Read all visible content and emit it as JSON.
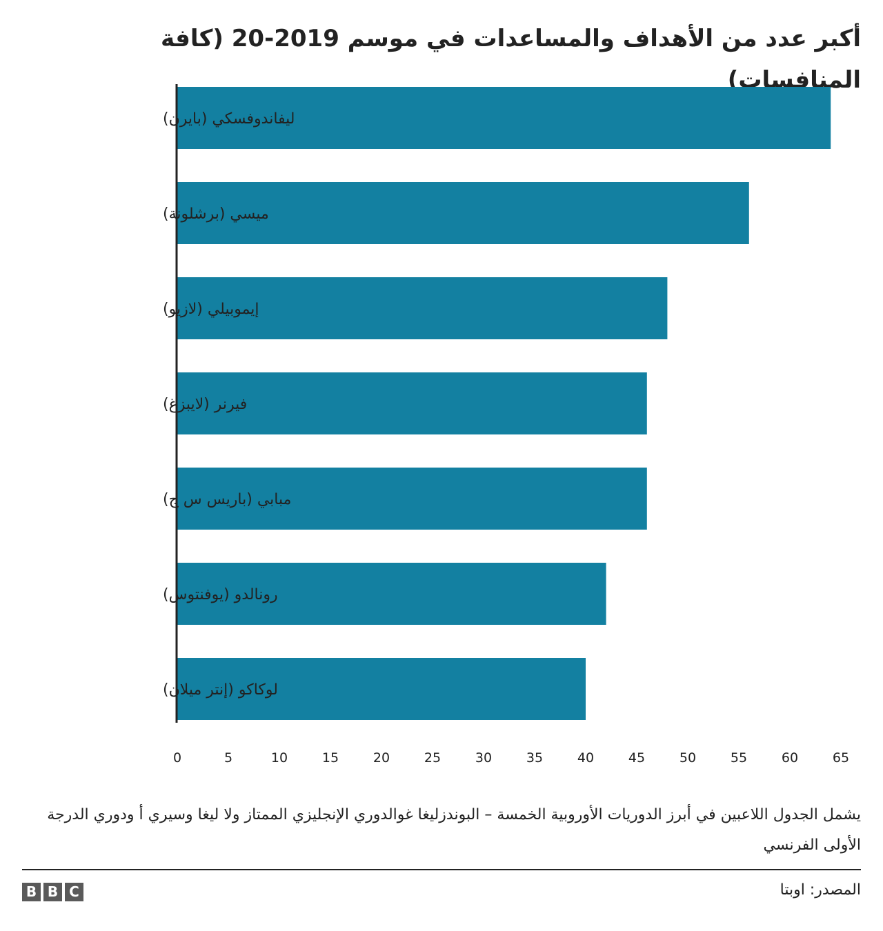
{
  "title": "أكبر عدد من الأهداف والمساعدات في موسم 2019-20 (كافة المنافسات)",
  "chart_data": {
    "type": "bar",
    "orientation": "horizontal",
    "categories": [
      "ليفاندوفسكي (بايرن)",
      "ميسي (برشلونة)",
      "إيموبيلي (لازيو)",
      "فيرنر (لايبزغ)",
      "مبابي (باريس س ج)",
      "رونالدو (يوفنتوس)",
      "لوكاكو (إنتر ميلان)"
    ],
    "values": [
      64,
      56,
      48,
      46,
      46,
      42,
      40
    ],
    "xlim": [
      0,
      65
    ],
    "xticks": [
      "0",
      "5",
      "10",
      "15",
      "20",
      "25",
      "30",
      "35",
      "40",
      "45",
      "50",
      "55",
      "60",
      "65"
    ],
    "grid": false,
    "bar_color": "#1380a1",
    "axis_color": "#222222"
  },
  "note": "يشمل الجدول اللاعبين في أبرز الدوريات الأوروبية الخمسة – البوندزليغا غوالدوري الإنجليزي الممتاز ولا ليغا وسيري أ ودوري الدرجة الأولى الفرنسي",
  "source": "المصدر: اوبتا",
  "logo": [
    "B",
    "B",
    "C"
  ]
}
